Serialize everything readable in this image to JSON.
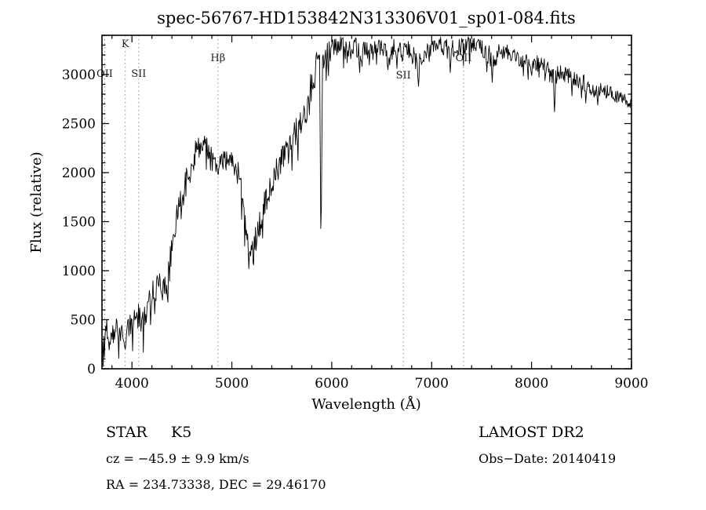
{
  "page": {
    "background": "#ffffff"
  },
  "header": {
    "title": "spec-56767-HD153842N313306V01_sp01-084.fits"
  },
  "footer": {
    "class_label": "STAR",
    "subclass": "K5",
    "survey": "LAMOST DR2",
    "cz": "cz = −45.9 ± 9.9 km/s",
    "obs_date": "Obs−Date: 20140419",
    "ra_dec": "RA = 234.73338, DEC = 29.46170"
  },
  "chart_data": {
    "type": "line",
    "title": "spec-56767-HD153842N313306V01_sp01-084.fits",
    "xlabel": "Wavelength (Å)",
    "ylabel": "Flux (relative)",
    "xlim": [
      3700,
      9000
    ],
    "ylim": [
      0,
      3400
    ],
    "x_ticks": [
      4000,
      5000,
      6000,
      7000,
      8000,
      9000
    ],
    "y_ticks": [
      0,
      500,
      1000,
      1500,
      2000,
      2500,
      3000
    ],
    "x_minor": 200,
    "y_minor": 100,
    "grid": false,
    "legend": "none",
    "colors": {
      "line": "#000000",
      "marker_line": "#8f8f8f",
      "frame": "#000000"
    },
    "line_markers": [
      {
        "label": "OII",
        "wavelength": 3727,
        "label_y": 98
      },
      {
        "label": "K",
        "wavelength": 3933,
        "label_y": 60
      },
      {
        "label": "SII",
        "wavelength": 4068,
        "label_y": 98
      },
      {
        "label": "Hβ",
        "wavelength": 4861,
        "label_y": 78
      },
      {
        "label": "SII",
        "wavelength": 6717,
        "label_y": 100
      },
      {
        "label": "OII",
        "wavelength": 7320,
        "label_y": 78
      }
    ],
    "noise": {
      "seed": 12,
      "step": 6,
      "spike_prob": 0.07,
      "spike_scale": 1.6
    },
    "series": [
      {
        "name": "spectrum",
        "anchors": [
          [
            3700,
            230,
            120
          ],
          [
            3740,
            380,
            140
          ],
          [
            3780,
            320,
            120
          ],
          [
            3820,
            400,
            130
          ],
          [
            3860,
            430,
            130
          ],
          [
            3900,
            380,
            120
          ],
          [
            3935,
            320,
            100
          ],
          [
            3970,
            430,
            120
          ],
          [
            4000,
            500,
            140
          ],
          [
            4040,
            560,
            150
          ],
          [
            4100,
            480,
            140
          ],
          [
            4150,
            620,
            160
          ],
          [
            4200,
            720,
            170
          ],
          [
            4250,
            850,
            180
          ],
          [
            4300,
            880,
            180
          ],
          [
            4350,
            1000,
            190
          ],
          [
            4400,
            1250,
            190
          ],
          [
            4450,
            1500,
            180
          ],
          [
            4500,
            1700,
            170
          ],
          [
            4550,
            1950,
            160
          ],
          [
            4600,
            2100,
            150
          ],
          [
            4650,
            2250,
            130
          ],
          [
            4700,
            2300,
            110
          ],
          [
            4750,
            2260,
            110
          ],
          [
            4800,
            2180,
            100
          ],
          [
            4861,
            2060,
            100
          ],
          [
            4900,
            2140,
            100
          ],
          [
            4950,
            2120,
            100
          ],
          [
            5000,
            2110,
            110
          ],
          [
            5050,
            2020,
            120
          ],
          [
            5100,
            1850,
            150
          ],
          [
            5150,
            1350,
            170
          ],
          [
            5185,
            1120,
            140
          ],
          [
            5220,
            1250,
            150
          ],
          [
            5270,
            1450,
            150
          ],
          [
            5320,
            1650,
            150
          ],
          [
            5380,
            1850,
            140
          ],
          [
            5440,
            2000,
            140
          ],
          [
            5500,
            2150,
            130
          ],
          [
            5560,
            2260,
            130
          ],
          [
            5620,
            2380,
            140
          ],
          [
            5680,
            2500,
            140
          ],
          [
            5740,
            2620,
            150
          ],
          [
            5800,
            2900,
            170
          ],
          [
            5850,
            3100,
            160
          ],
          [
            5900,
            3020,
            150
          ],
          [
            5950,
            3200,
            140
          ],
          [
            6000,
            3250,
            130
          ],
          [
            6050,
            3300,
            120
          ],
          [
            6100,
            3280,
            120
          ],
          [
            6150,
            3230,
            120
          ],
          [
            6200,
            3260,
            110
          ],
          [
            6250,
            3280,
            110
          ],
          [
            6300,
            3240,
            110
          ],
          [
            6350,
            3260,
            100
          ],
          [
            6400,
            3230,
            110
          ],
          [
            6450,
            3270,
            100
          ],
          [
            6500,
            3280,
            100
          ],
          [
            6563,
            3180,
            100
          ],
          [
            6620,
            3270,
            90
          ],
          [
            6680,
            3260,
            90
          ],
          [
            6720,
            3240,
            90
          ],
          [
            6780,
            3260,
            90
          ],
          [
            6870,
            3080,
            110
          ],
          [
            6930,
            3240,
            90
          ],
          [
            7000,
            3280,
            90
          ],
          [
            7060,
            3300,
            90
          ],
          [
            7120,
            3290,
            90
          ],
          [
            7180,
            3240,
            100
          ],
          [
            7250,
            3280,
            90
          ],
          [
            7320,
            3290,
            90
          ],
          [
            7380,
            3300,
            90
          ],
          [
            7440,
            3310,
            90
          ],
          [
            7500,
            3290,
            90
          ],
          [
            7560,
            3200,
            110
          ],
          [
            7620,
            3150,
            110
          ],
          [
            7680,
            3240,
            90
          ],
          [
            7740,
            3230,
            80
          ],
          [
            7800,
            3200,
            80
          ],
          [
            7860,
            3170,
            80
          ],
          [
            7920,
            3150,
            80
          ],
          [
            7980,
            3140,
            80
          ],
          [
            8040,
            3120,
            80
          ],
          [
            8100,
            3100,
            80
          ],
          [
            8160,
            3050,
            90
          ],
          [
            8220,
            2960,
            100
          ],
          [
            8280,
            3020,
            80
          ],
          [
            8340,
            3000,
            80
          ],
          [
            8400,
            2980,
            80
          ],
          [
            8460,
            2950,
            80
          ],
          [
            8520,
            2920,
            90
          ],
          [
            8580,
            2900,
            90
          ],
          [
            8640,
            2870,
            80
          ],
          [
            8700,
            2850,
            80
          ],
          [
            8760,
            2820,
            80
          ],
          [
            8820,
            2790,
            70
          ],
          [
            8880,
            2770,
            70
          ],
          [
            8940,
            2740,
            70
          ],
          [
            9000,
            2700,
            70
          ]
        ]
      }
    ],
    "deep_absorption_lines": [
      [
        3933,
        200
      ],
      [
        4226,
        560
      ],
      [
        4305,
        700
      ],
      [
        4340,
        760
      ],
      [
        4861,
        1980
      ],
      [
        5172,
        1020
      ],
      [
        5890,
        1430
      ],
      [
        5896,
        1650
      ],
      [
        6277,
        3020
      ],
      [
        6563,
        3050
      ],
      [
        6867,
        2880
      ],
      [
        7186,
        3020
      ],
      [
        7605,
        2920
      ],
      [
        8227,
        2620
      ],
      [
        8498,
        2760
      ],
      [
        8542,
        2710
      ],
      [
        8662,
        2690
      ]
    ]
  }
}
